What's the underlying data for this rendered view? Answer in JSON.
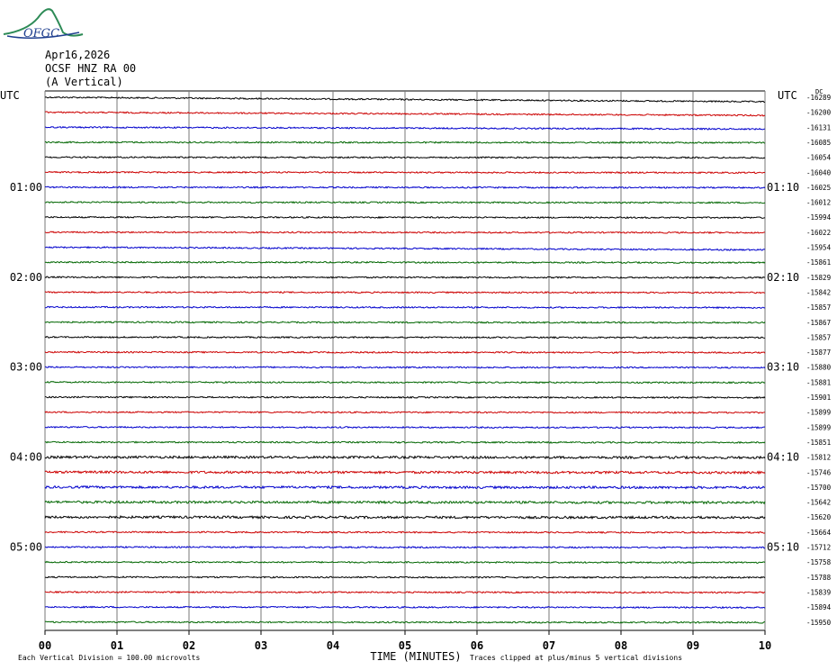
{
  "header": {
    "logo_text": "OFGC",
    "date": "Apr16,2026",
    "station": "OCSF HNZ RA 00",
    "component": "(A Vertical)"
  },
  "utc_label_left": "UTC",
  "utc_label_right": "UTC",
  "dc_label": "DC",
  "footer": {
    "scale_note": "Each Vertical Division =  100.00 microvolts",
    "xaxis_title": "TIME (MINUTES)",
    "clip_note": "Traces clipped at plus/minus 5 vertical divisions"
  },
  "chart_data": {
    "type": "line",
    "title": "",
    "xlabel": "TIME (MINUTES)",
    "ylabel": "",
    "xlim": [
      0,
      10
    ],
    "x_ticks": [
      "00",
      "01",
      "02",
      "03",
      "04",
      "05",
      "06",
      "07",
      "08",
      "09",
      "10"
    ],
    "grid": true,
    "trace_colors": [
      "#000000",
      "#cc0000",
      "#0000cc",
      "#006600"
    ],
    "left_time_labels": [
      {
        "trace_index": 6,
        "label": "01:00"
      },
      {
        "trace_index": 12,
        "label": "02:00"
      },
      {
        "trace_index": 18,
        "label": "03:00"
      },
      {
        "trace_index": 24,
        "label": "04:00"
      },
      {
        "trace_index": 30,
        "label": "05:00"
      }
    ],
    "right_time_labels": [
      {
        "trace_index": 6,
        "label": "01:10"
      },
      {
        "trace_index": 12,
        "label": "02:10"
      },
      {
        "trace_index": 18,
        "label": "03:10"
      },
      {
        "trace_index": 24,
        "label": "04:10"
      },
      {
        "trace_index": 30,
        "label": "05:10"
      }
    ],
    "dc_offsets": [
      "-16289",
      "-16200",
      "-16131",
      "-16085",
      "-16054",
      "-16040",
      "-16025",
      "-16012",
      "-15994",
      "-16022",
      "-15954",
      "-15861",
      "-15829",
      "-15842",
      "-15857",
      "-15867",
      "-15857",
      "-15877",
      "-15880",
      "-15881",
      "-15901",
      "-15899",
      "-15899",
      "-15851",
      "-15812",
      "-15746",
      "-15700",
      "-15642",
      "-15620",
      "-15664",
      "-15712",
      "-15758",
      "-15788",
      "-15839",
      "-15894",
      "-15950"
    ]
  }
}
